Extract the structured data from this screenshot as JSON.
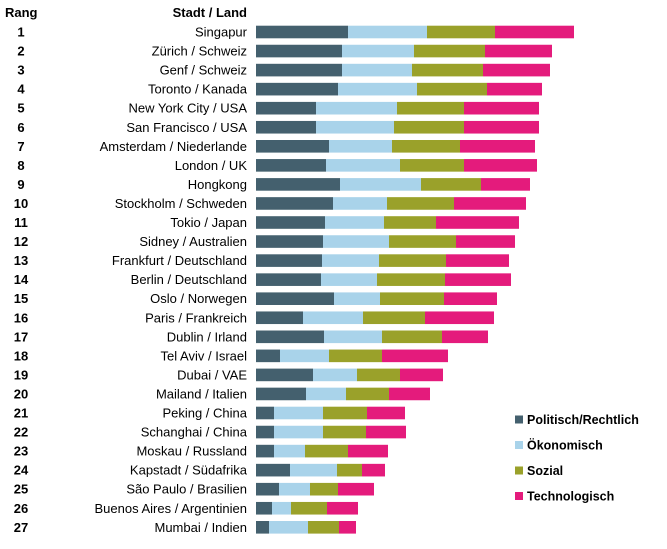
{
  "chart_data": {
    "type": "bar",
    "stacked": true,
    "orientation": "horizontal",
    "header_rank": "Rang",
    "header_city": "Stadt / Land",
    "ranks": [
      "1",
      "2",
      "3",
      "4",
      "5",
      "6",
      "7",
      "8",
      "9",
      "10",
      "11",
      "12",
      "13",
      "14",
      "15",
      "16",
      "17",
      "18",
      "19",
      "20",
      "21",
      "22",
      "23",
      "24",
      "25",
      "26",
      "27"
    ],
    "categories": [
      "Singapur",
      "Zürich / Schweiz",
      "Genf / Schweiz",
      "Toronto / Kanada",
      "New York City / USA",
      "San Francisco / USA",
      "Amsterdam / Niederlande",
      "London / UK",
      "Hongkong",
      "Stockholm / Schweden",
      "Tokio / Japan",
      "Sidney / Australien",
      "Frankfurt / Deutschland",
      "Berlin / Deutschland",
      "Oslo / Norwegen",
      "Paris / Frankreich",
      "Dublin / Irland",
      "Tel Aviv / Israel",
      "Dubai / VAE",
      "Mailand / Italien",
      "Peking / China",
      "Schanghai / China",
      "Moskau / Russland",
      "Kapstadt / Südafrika",
      "São Paulo / Brasilien",
      "Buenos Aires / Argentinien",
      "Mumbai / Indien"
    ],
    "series": [
      {
        "name": "Politisch/Rechtlich",
        "color": "#44606e",
        "values": [
          92,
          86,
          86,
          82,
          60,
          60,
          73,
          70,
          84,
          77,
          69,
          67,
          66,
          65,
          78,
          47,
          68,
          24,
          57,
          50,
          18,
          18,
          18,
          34,
          23,
          16,
          13
        ]
      },
      {
        "name": "Ökonomisch",
        "color": "#a9d3ea",
        "values": [
          79,
          72,
          70,
          79,
          81,
          78,
          63,
          74,
          81,
          54,
          59,
          66,
          57,
          56,
          46,
          60,
          58,
          49,
          44,
          40,
          49,
          49,
          31,
          47,
          31,
          19,
          39
        ]
      },
      {
        "name": "Sozial",
        "color": "#9aa12a",
        "values": [
          68,
          71,
          71,
          70,
          67,
          70,
          68,
          64,
          60,
          67,
          52,
          67,
          67,
          68,
          64,
          62,
          60,
          53,
          43,
          43,
          44,
          43,
          43,
          25,
          28,
          36,
          31
        ]
      },
      {
        "name": "Technologisch",
        "color": "#e41b7c",
        "values": [
          79,
          67,
          67,
          55,
          75,
          75,
          75,
          73,
          49,
          72,
          83,
          59,
          63,
          66,
          53,
          69,
          46,
          66,
          43,
          41,
          38,
          40,
          40,
          23,
          36,
          31,
          17
        ]
      }
    ],
    "legend_position": "bottom-right",
    "grid": false
  }
}
